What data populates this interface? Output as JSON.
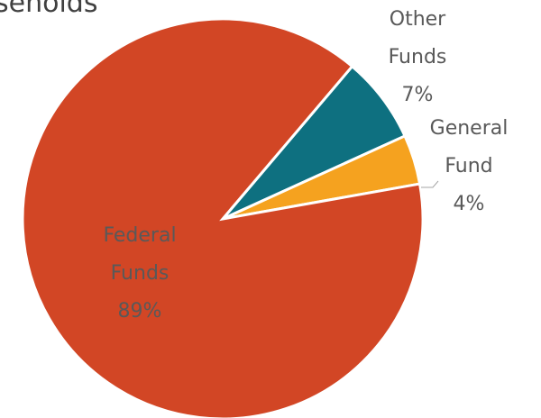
{
  "chart_data": {
    "type": "pie",
    "title": "seholds",
    "categories": [
      "Other Funds",
      "General Fund",
      "Federal Funds"
    ],
    "values": [
      7,
      4,
      89
    ],
    "value_labels": [
      "7%",
      "4%",
      "89%"
    ],
    "colors": [
      "#0e7080",
      "#f5a21f",
      "#d24625"
    ]
  }
}
